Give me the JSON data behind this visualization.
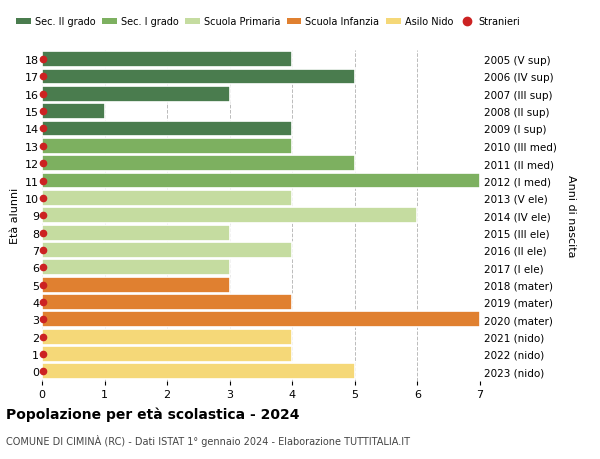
{
  "ages": [
    18,
    17,
    16,
    15,
    14,
    13,
    12,
    11,
    10,
    9,
    8,
    7,
    6,
    5,
    4,
    3,
    2,
    1,
    0
  ],
  "years": [
    "2005 (V sup)",
    "2006 (IV sup)",
    "2007 (III sup)",
    "2008 (II sup)",
    "2009 (I sup)",
    "2010 (III med)",
    "2011 (II med)",
    "2012 (I med)",
    "2013 (V ele)",
    "2014 (IV ele)",
    "2015 (III ele)",
    "2016 (II ele)",
    "2017 (I ele)",
    "2018 (mater)",
    "2019 (mater)",
    "2020 (mater)",
    "2021 (nido)",
    "2022 (nido)",
    "2023 (nido)"
  ],
  "values": [
    4,
    5,
    3,
    1,
    4,
    4,
    5,
    7,
    4,
    6,
    3,
    4,
    3,
    3,
    4,
    7,
    4,
    4,
    5
  ],
  "bar_colors": [
    "#4a7c4e",
    "#4a7c4e",
    "#4a7c4e",
    "#4a7c4e",
    "#4a7c4e",
    "#7db060",
    "#7db060",
    "#7db060",
    "#c5dca0",
    "#c5dca0",
    "#c5dca0",
    "#c5dca0",
    "#c5dca0",
    "#e08030",
    "#e08030",
    "#e08030",
    "#f5d878",
    "#f5d878",
    "#f5d878"
  ],
  "stranieri_dot_color": "#cc2222",
  "legend_labels": [
    "Sec. II grado",
    "Sec. I grado",
    "Scuola Primaria",
    "Scuola Infanzia",
    "Asilo Nido",
    "Stranieri"
  ],
  "legend_colors": [
    "#4a7c4e",
    "#7db060",
    "#c5dca0",
    "#e08030",
    "#f5d878",
    "#cc2222"
  ],
  "title": "Popolazione per età scolastica - 2024",
  "subtitle": "COMUNE DI CIMINÀ (RC) - Dati ISTAT 1° gennaio 2024 - Elaborazione TUTTITALIA.IT",
  "ylabel_left": "Età alunni",
  "ylabel_right": "Anni di nascita",
  "xlim": [
    0,
    7
  ],
  "xticks": [
    0,
    1,
    2,
    3,
    4,
    5,
    6,
    7
  ],
  "background_color": "#ffffff",
  "grid_color": "#bbbbbb"
}
